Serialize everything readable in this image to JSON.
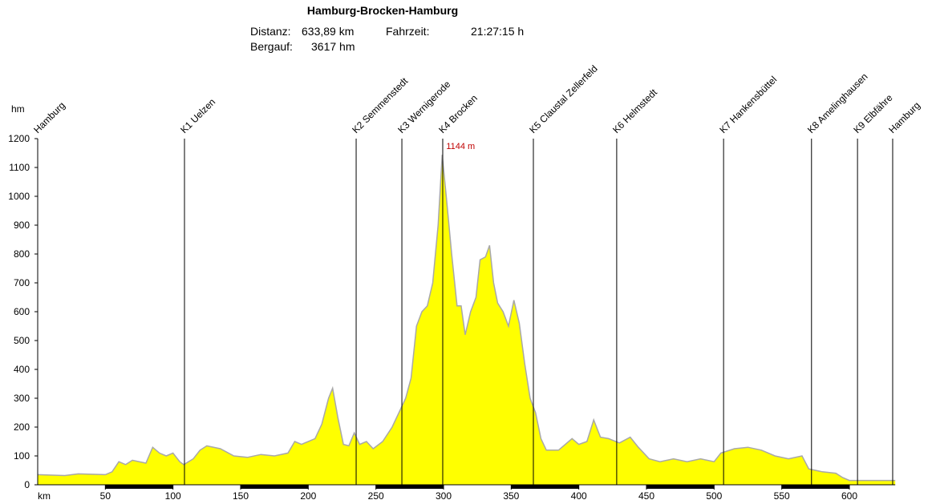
{
  "chart_data": {
    "type": "area",
    "title": "Hamburg-Brocken-Hamburg",
    "info": [
      {
        "label": "Distanz:",
        "value": "633,89 km"
      },
      {
        "label": "Fahrzeit:",
        "value": "21:27:15 h"
      },
      {
        "label": "Bergauf:",
        "value": "3617 hm"
      }
    ],
    "y_axis_label": "hm",
    "x_axis_label": "km",
    "annotation": {
      "text": "1144 m",
      "x": 299,
      "y": 1144
    },
    "color": "#ffff00",
    "line_color": "#a8a8a8",
    "stations": [
      {
        "name": "Hamburg",
        "km": 0
      },
      {
        "name": "K1 Uelzen",
        "km": 108.5
      },
      {
        "name": "K2 Semmenstedt",
        "km": 235.4
      },
      {
        "name": "K3 Wernigerode",
        "km": 269.2
      },
      {
        "name": "K4 Brocken",
        "km": 299.4
      },
      {
        "name": "K5 Claustal Zellerfeld",
        "km": 366.4
      },
      {
        "name": "K6 Helmstedt",
        "km": 428
      },
      {
        "name": "K7 Hankensbüttel",
        "km": 507
      },
      {
        "name": "K8 Amelinghausen",
        "km": 572
      },
      {
        "name": "K9 Elbfähre",
        "km": 606
      },
      {
        "name": "Hamburg",
        "km": 632
      }
    ],
    "x": [
      0,
      20,
      30,
      50,
      55,
      60,
      65,
      70,
      80,
      85,
      90,
      95,
      100,
      105,
      108,
      115,
      120,
      125,
      135,
      145,
      155,
      165,
      175,
      185,
      190,
      195,
      205,
      210,
      215,
      218,
      222,
      226,
      230,
      234,
      238,
      243,
      248,
      255,
      262,
      268,
      272,
      276,
      280,
      284,
      288,
      292,
      296,
      299,
      302,
      306,
      310,
      313,
      316,
      320,
      324,
      327,
      331,
      334,
      337,
      340,
      344,
      348,
      352,
      356,
      360,
      364,
      368,
      372,
      376,
      385,
      395,
      400,
      406,
      411,
      416,
      422,
      430,
      438,
      444,
      452,
      460,
      470,
      480,
      490,
      500,
      505,
      515,
      525,
      535,
      545,
      555,
      565,
      570,
      580,
      590,
      595,
      600,
      610,
      620,
      633.89
    ],
    "values": [
      35,
      32,
      38,
      35,
      45,
      80,
      70,
      85,
      75,
      130,
      110,
      100,
      110,
      80,
      70,
      90,
      120,
      135,
      125,
      100,
      95,
      105,
      100,
      110,
      150,
      140,
      160,
      210,
      300,
      335,
      230,
      140,
      135,
      180,
      140,
      150,
      125,
      150,
      200,
      260,
      300,
      370,
      550,
      600,
      620,
      700,
      900,
      1144,
      1000,
      800,
      620,
      620,
      520,
      600,
      650,
      780,
      790,
      830,
      700,
      630,
      600,
      550,
      640,
      560,
      420,
      300,
      250,
      160,
      120,
      120,
      160,
      140,
      150,
      225,
      165,
      160,
      145,
      165,
      130,
      90,
      80,
      90,
      80,
      90,
      80,
      110,
      125,
      130,
      120,
      100,
      90,
      100,
      55,
      45,
      40,
      25,
      15,
      15,
      15,
      15
    ],
    "xlim": [
      0,
      633.89
    ],
    "ylim": [
      0,
      1200
    ],
    "xticks": [
      50,
      100,
      150,
      200,
      250,
      300,
      350,
      400,
      450,
      500,
      550,
      600
    ],
    "yticks": [
      0,
      100,
      200,
      300,
      400,
      500,
      600,
      700,
      800,
      900,
      1000,
      1100,
      1200
    ]
  }
}
